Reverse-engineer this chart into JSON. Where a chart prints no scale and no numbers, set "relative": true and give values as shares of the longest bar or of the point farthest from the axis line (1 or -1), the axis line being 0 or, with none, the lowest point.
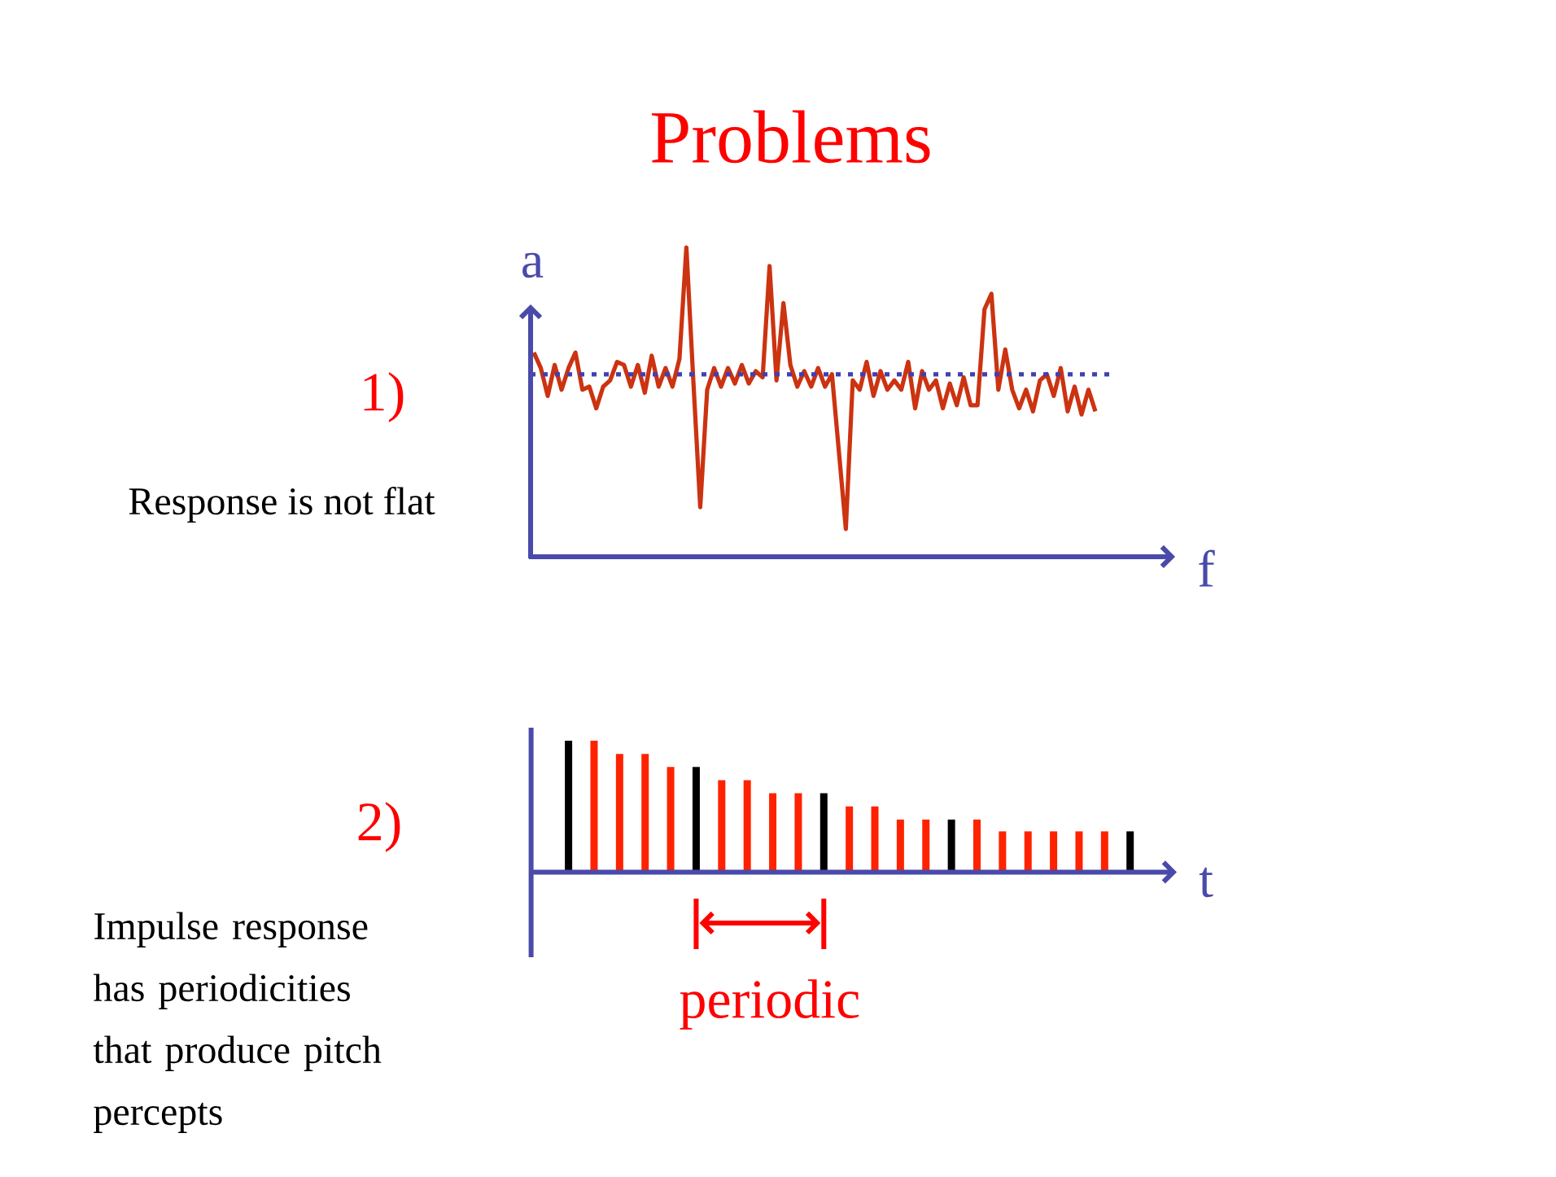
{
  "chart_data": [
    {
      "type": "line",
      "relative": true,
      "title": "Problems",
      "xlabel": "f",
      "ylabel": "a",
      "annotations": [
        "1)",
        "Response is not flat"
      ],
      "categories": [
        null,
        null,
        null,
        null,
        null,
        null,
        null,
        null,
        null,
        null,
        null,
        null,
        null,
        null,
        null,
        null,
        null,
        null,
        null,
        null,
        null,
        null,
        null,
        null,
        null,
        null,
        null,
        null,
        null,
        null,
        null,
        null,
        null,
        null,
        null,
        null,
        null,
        null,
        null,
        null,
        null,
        null,
        null,
        null,
        null,
        null,
        null,
        null,
        null,
        null,
        null,
        null,
        null,
        null,
        null,
        null,
        null,
        null,
        null,
        null,
        null,
        null,
        null,
        null,
        null,
        null,
        null,
        null,
        null,
        null,
        null,
        null,
        null,
        null,
        null,
        null,
        null,
        null,
        null,
        null,
        null,
        null
      ],
      "series": [
        {
          "color": "#cc3311",
          "values": [
            0.66,
            0.61,
            0.52,
            0.62,
            0.54,
            0.61,
            0.66,
            0.54,
            0.55,
            0.48,
            0.55,
            0.57,
            0.63,
            0.62,
            0.55,
            0.62,
            0.53,
            0.65,
            0.55,
            0.61,
            0.55,
            0.64,
            1.0,
            0.57,
            0.16,
            0.54,
            0.61,
            0.55,
            0.61,
            0.56,
            0.62,
            0.56,
            0.6,
            0.58,
            0.94,
            0.57,
            0.82,
            0.62,
            0.55,
            0.6,
            0.55,
            0.61,
            0.55,
            0.59,
            0.34,
            0.09,
            0.57,
            0.54,
            0.63,
            0.52,
            0.6,
            0.54,
            0.57,
            0.54,
            0.63,
            0.48,
            0.6,
            0.54,
            0.57,
            0.48,
            0.56,
            0.49,
            0.58,
            0.49,
            0.49,
            0.8,
            0.85,
            0.54,
            0.67,
            0.54,
            0.48,
            0.54,
            0.47,
            0.57,
            0.59,
            0.52,
            0.61,
            0.47,
            0.55,
            0.46,
            0.54,
            0.47
          ]
        }
      ],
      "ref_lines": [
        {
          "axis": "y",
          "value": 0.59,
          "color": "#4040b0",
          "line_style": "dotted"
        }
      ]
    },
    {
      "type": "bar",
      "relative": true,
      "xlabel": "t",
      "annotations": [
        "2)",
        "Impulse response has periodicities that produce pitch percepts",
        "periodic"
      ],
      "categories": [
        null,
        null,
        null,
        null,
        null,
        null,
        null,
        null,
        null,
        null,
        null,
        null,
        null,
        null,
        null,
        null,
        null,
        null,
        null,
        null,
        null,
        null,
        null
      ],
      "values": [
        1.0,
        1.0,
        0.9,
        0.9,
        0.8,
        0.8,
        0.7,
        0.7,
        0.6,
        0.6,
        0.6,
        0.5,
        0.5,
        0.4,
        0.4,
        0.4,
        0.4,
        0.31,
        0.31,
        0.31,
        0.31,
        0.31,
        0.31
      ],
      "colors": [
        "#000000",
        "#ff2200",
        "#ff2200",
        "#ff2200",
        "#ff2200",
        "#000000",
        "#ff2200",
        "#ff2200",
        "#ff2200",
        "#ff2200",
        "#000000",
        "#ff2200",
        "#ff2200",
        "#ff2200",
        "#ff2200",
        "#000000",
        "#ff2200",
        "#ff2200",
        "#ff2200",
        "#ff2200",
        "#ff2200",
        "#ff2200",
        "#000000"
      ]
    }
  ]
}
